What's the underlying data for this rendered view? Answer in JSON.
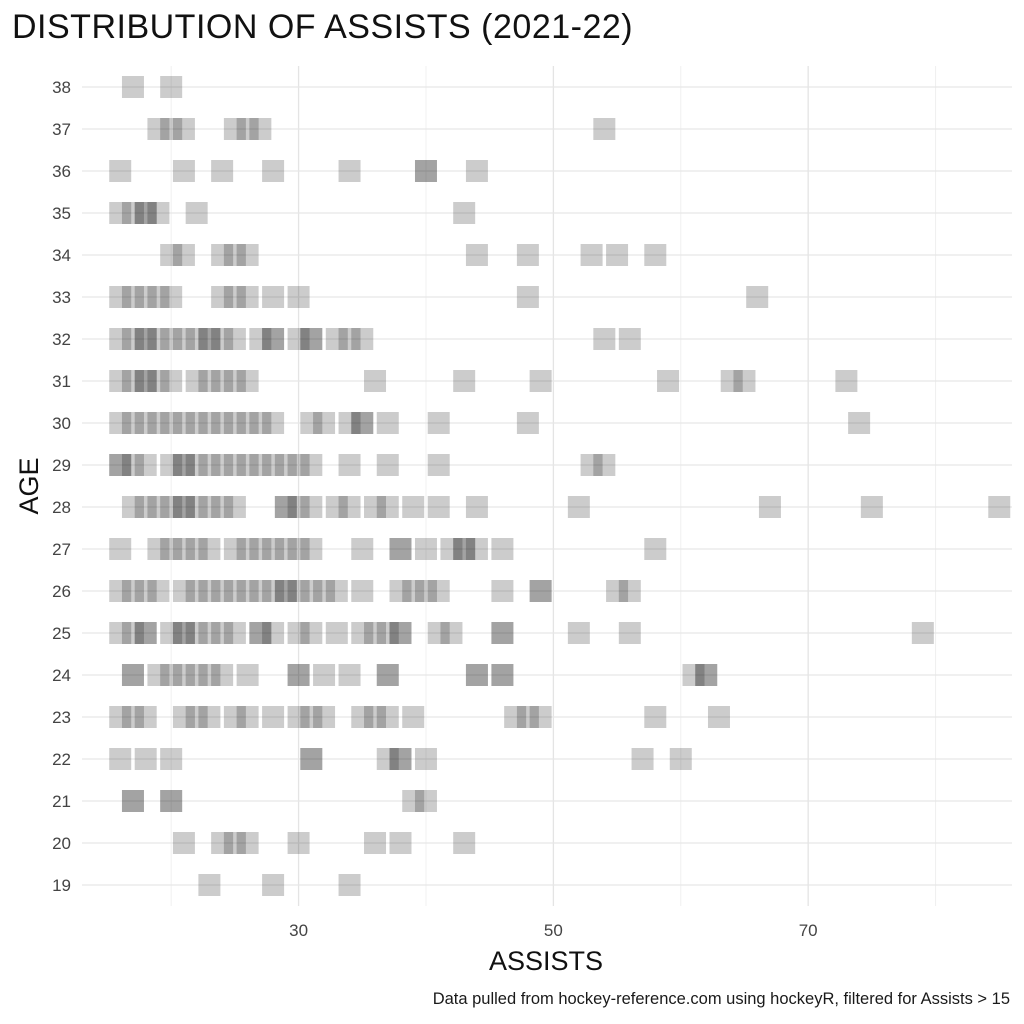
{
  "chart_data": {
    "type": "scatter",
    "title": "DISTRIBUTION OF ASSISTS (2021-22)",
    "xlabel": "ASSISTS",
    "ylabel": "AGE",
    "caption": "Data pulled from hockey-reference.com using hockeyR, filtered for Assists > 15",
    "xlim": [
      13,
      86
    ],
    "ylim": [
      18.5,
      38.5
    ],
    "x_ticks": [
      30,
      50,
      70
    ],
    "y_ticks": [
      19,
      20,
      21,
      22,
      23,
      24,
      25,
      26,
      27,
      28,
      29,
      30,
      31,
      32,
      33,
      34,
      35,
      36,
      37,
      38
    ],
    "grid": true,
    "marker": "square",
    "marker_color": "#000000",
    "marker_alpha": 0.2,
    "points": [
      {
        "age": 38,
        "assists": [
          17,
          20
        ]
      },
      {
        "age": 37,
        "assists": [
          19,
          20,
          21,
          25,
          26,
          27,
          54
        ]
      },
      {
        "age": 36,
        "assists": [
          16,
          21,
          24,
          28,
          34,
          40,
          40,
          44
        ]
      },
      {
        "age": 35,
        "assists": [
          16,
          17,
          18,
          18,
          19,
          22,
          43
        ]
      },
      {
        "age": 34,
        "assists": [
          20,
          21,
          24,
          25,
          26,
          44,
          48,
          53,
          55,
          58
        ]
      },
      {
        "age": 33,
        "assists": [
          16,
          17,
          18,
          19,
          20,
          24,
          25,
          26,
          28,
          30,
          48,
          66
        ]
      },
      {
        "age": 32,
        "assists": [
          16,
          17,
          18,
          18,
          19,
          20,
          21,
          22,
          23,
          23,
          24,
          25,
          27,
          28,
          28,
          30,
          31,
          31,
          33,
          34,
          35,
          54,
          56
        ]
      },
      {
        "age": 31,
        "assists": [
          16,
          17,
          18,
          18,
          19,
          20,
          22,
          23,
          24,
          25,
          26,
          36,
          43,
          49,
          59,
          64,
          65,
          73
        ]
      },
      {
        "age": 30,
        "assists": [
          16,
          17,
          18,
          19,
          20,
          21,
          22,
          23,
          24,
          25,
          26,
          27,
          28,
          31,
          32,
          34,
          35,
          35,
          37,
          41,
          48,
          74
        ]
      },
      {
        "age": 29,
        "assists": [
          16,
          16,
          17,
          18,
          20,
          21,
          21,
          22,
          23,
          24,
          25,
          26,
          27,
          28,
          29,
          30,
          31,
          34,
          37,
          41,
          53,
          54
        ]
      },
      {
        "age": 28,
        "assists": [
          17,
          18,
          19,
          20,
          21,
          21,
          22,
          23,
          24,
          25,
          29,
          29,
          30,
          31,
          33,
          34,
          36,
          37,
          39,
          41,
          44,
          52,
          67,
          75,
          85
        ]
      },
      {
        "age": 27,
        "assists": [
          16,
          19,
          20,
          21,
          22,
          23,
          25,
          26,
          27,
          28,
          29,
          30,
          31,
          35,
          38,
          38,
          40,
          42,
          43,
          43,
          44,
          46,
          58
        ]
      },
      {
        "age": 26,
        "assists": [
          16,
          17,
          18,
          19,
          21,
          22,
          23,
          24,
          25,
          26,
          27,
          28,
          29,
          29,
          30,
          31,
          32,
          33,
          35,
          38,
          39,
          40,
          41,
          46,
          49,
          49,
          55,
          56
        ]
      },
      {
        "age": 25,
        "assists": [
          16,
          17,
          18,
          18,
          20,
          21,
          21,
          22,
          23,
          24,
          25,
          27,
          27,
          28,
          30,
          31,
          33,
          35,
          36,
          37,
          38,
          38,
          41,
          42,
          46,
          46,
          52,
          56,
          79
        ]
      },
      {
        "age": 24,
        "assists": [
          17,
          17,
          19,
          20,
          21,
          22,
          23,
          24,
          26,
          30,
          30,
          32,
          34,
          37,
          37,
          44,
          44,
          46,
          46,
          61,
          62,
          62
        ]
      },
      {
        "age": 23,
        "assists": [
          16,
          17,
          18,
          21,
          22,
          23,
          25,
          26,
          28,
          30,
          31,
          32,
          35,
          36,
          37,
          39,
          47,
          48,
          49,
          58,
          63
        ]
      },
      {
        "age": 22,
        "assists": [
          16,
          18,
          20,
          31,
          31,
          37,
          38,
          38,
          40,
          57,
          60
        ]
      },
      {
        "age": 21,
        "assists": [
          17,
          17,
          20,
          20,
          39,
          40
        ]
      },
      {
        "age": 20,
        "assists": [
          21,
          24,
          25,
          26,
          30,
          36,
          38,
          43
        ]
      },
      {
        "age": 19,
        "assists": [
          23,
          28,
          34
        ]
      }
    ]
  }
}
